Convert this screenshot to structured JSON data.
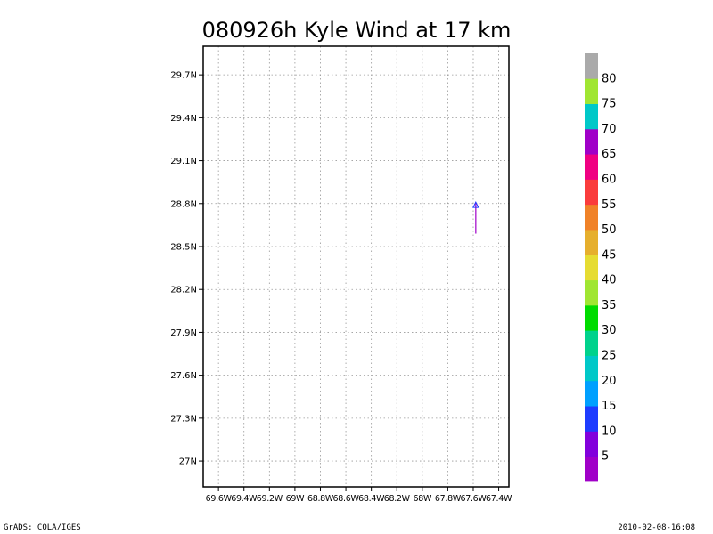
{
  "chart_data": {
    "type": "scatter",
    "title": "080926h Kyle Wind at 17 km",
    "xlabel": "",
    "ylabel": "",
    "x_ticks": [
      {
        "value": -69.6,
        "label": "69.6W"
      },
      {
        "value": -69.4,
        "label": "69.4W"
      },
      {
        "value": -69.2,
        "label": "69.2W"
      },
      {
        "value": -69.0,
        "label": "69W"
      },
      {
        "value": -68.8,
        "label": "68.8W"
      },
      {
        "value": -68.6,
        "label": "68.6W"
      },
      {
        "value": -68.4,
        "label": "68.4W"
      },
      {
        "value": -68.2,
        "label": "68.2W"
      },
      {
        "value": -68.0,
        "label": "68W"
      },
      {
        "value": -67.8,
        "label": "67.8W"
      },
      {
        "value": -67.6,
        "label": "67.6W"
      },
      {
        "value": -67.4,
        "label": "67.4W"
      }
    ],
    "y_ticks": [
      {
        "value": 27.0,
        "label": "27N"
      },
      {
        "value": 27.3,
        "label": "27.3N"
      },
      {
        "value": 27.6,
        "label": "27.6N"
      },
      {
        "value": 27.9,
        "label": "27.9N"
      },
      {
        "value": 28.2,
        "label": "28.2N"
      },
      {
        "value": 28.5,
        "label": "28.5N"
      },
      {
        "value": 28.8,
        "label": "28.8N"
      },
      {
        "value": 29.1,
        "label": "29.1N"
      },
      {
        "value": 29.4,
        "label": "29.4N"
      },
      {
        "value": 29.7,
        "label": "29.7N"
      }
    ],
    "xlim": [
      -69.72,
      -67.32
    ],
    "ylim": [
      26.82,
      29.9
    ],
    "grid": true,
    "track": {
      "points": [
        {
          "lon": -67.58,
          "lat": 28.59,
          "color": "#a000c8"
        },
        {
          "lon": -67.58,
          "lat": 28.81,
          "color": "#1e3cff"
        }
      ],
      "arrow_color": "#1e3cff"
    },
    "colorbar": {
      "labels": [
        "5",
        "10",
        "15",
        "20",
        "25",
        "30",
        "35",
        "40",
        "45",
        "50",
        "55",
        "60",
        "65",
        "70",
        "75",
        "80"
      ],
      "colors": [
        "#a000c8",
        "#8200dc",
        "#1e3cff",
        "#00a0ff",
        "#00c8c8",
        "#00d28c",
        "#00dc00",
        "#a0e632",
        "#e6dc32",
        "#e6af2d",
        "#f08228",
        "#fa3c3c",
        "#f00082",
        "#a000c8",
        "#00c8c8",
        "#a0e632",
        "#aaaaaa"
      ]
    }
  },
  "footer": {
    "left": "GrADS: COLA/IGES",
    "right": "2010-02-08-16:08"
  }
}
